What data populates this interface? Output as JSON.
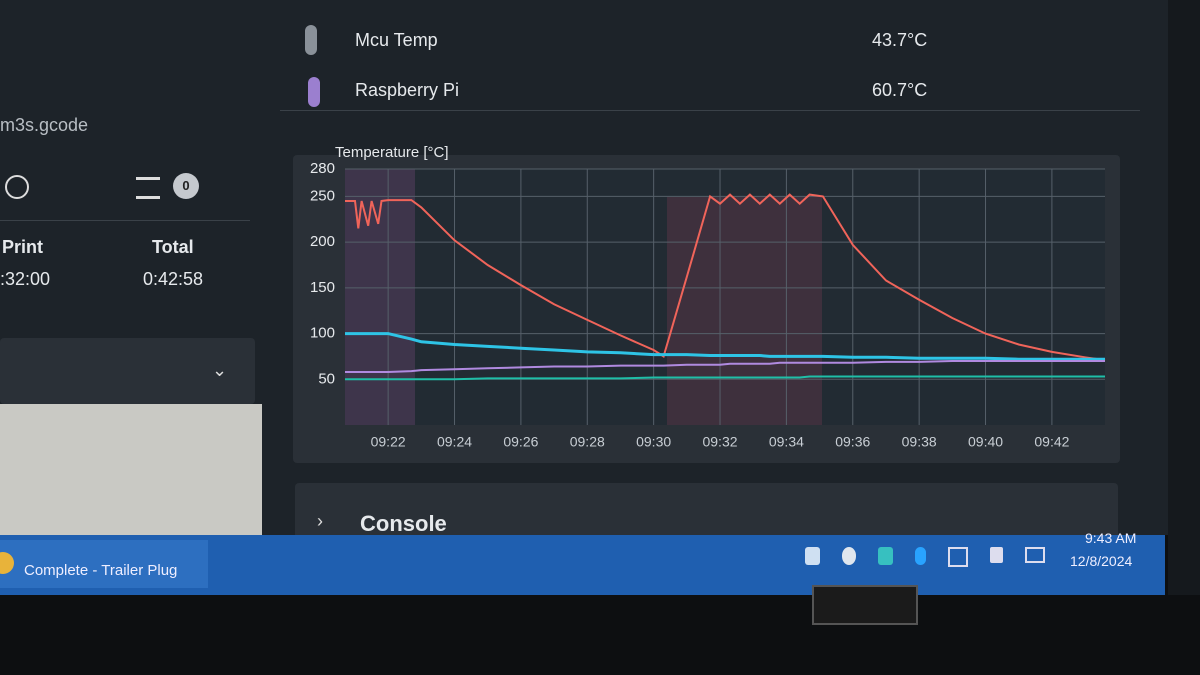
{
  "sensors": [
    {
      "name": "Mcu Temp",
      "value": "43.7°C"
    },
    {
      "name": "Raspberry Pi",
      "value": "60.7°C"
    }
  ],
  "file": "m3s.gcode",
  "queue_count": "0",
  "times": [
    {
      "label": "Print",
      "value": ":32:00"
    },
    {
      "label": "Total",
      "value": "0:42:58"
    }
  ],
  "chart_data": {
    "type": "line",
    "title": "Temperature [°C]",
    "x": [
      20.7,
      21.0,
      21.1,
      21.2,
      21.4,
      21.5,
      21.7,
      21.8,
      22.0,
      22.7,
      23,
      24,
      25,
      26,
      27,
      28,
      29,
      30,
      30.3,
      31,
      31.7,
      32,
      32.3,
      32.6,
      32.9,
      33.2,
      33.5,
      33.8,
      34.1,
      34.4,
      34.7,
      35.1,
      36,
      37,
      38,
      39,
      40,
      41,
      42,
      43,
      43.6
    ],
    "xlim": [
      20.7,
      43.6
    ],
    "xticks": [
      {
        "value": 22,
        "label": "09:22"
      },
      {
        "value": 24,
        "label": "09:24"
      },
      {
        "value": 26,
        "label": "09:26"
      },
      {
        "value": 28,
        "label": "09:28"
      },
      {
        "value": 30,
        "label": "09:30"
      },
      {
        "value": 32,
        "label": "09:32"
      },
      {
        "value": 34,
        "label": "09:34"
      },
      {
        "value": 36,
        "label": "09:36"
      },
      {
        "value": 38,
        "label": "09:38"
      },
      {
        "value": 40,
        "label": "09:40"
      },
      {
        "value": 42,
        "label": "09:42"
      }
    ],
    "ylim": [
      0,
      280
    ],
    "yticks": [
      50,
      100,
      150,
      200,
      250,
      280
    ],
    "grid": true,
    "series": [
      {
        "color": "#f0645a",
        "values": [
          245,
          245,
          215,
          245,
          218,
          245,
          220,
          245,
          246,
          246,
          238,
          202,
          175,
          153,
          132,
          115,
          98,
          82,
          75,
          162,
          250,
          242,
          252,
          242,
          252,
          242,
          252,
          242,
          252,
          242,
          252,
          250,
          197,
          158,
          137,
          117,
          100,
          88,
          80,
          74,
          71
        ]
      },
      {
        "color": "#2ec4e6",
        "values": [
          100,
          100,
          100,
          100,
          100,
          100,
          100,
          100,
          100,
          94,
          91,
          88,
          86,
          84,
          82,
          80,
          79,
          77,
          77,
          77,
          76,
          76,
          76,
          76,
          76,
          76,
          75,
          75,
          75,
          75,
          75,
          75,
          74,
          74,
          73,
          73,
          73,
          72,
          72,
          72,
          72
        ]
      },
      {
        "color": "#b08ae0",
        "values": [
          58,
          58,
          58,
          58,
          58,
          58,
          58,
          58,
          58,
          59,
          60,
          61,
          62,
          63,
          64,
          64,
          65,
          65,
          65,
          66,
          66,
          66,
          67,
          67,
          67,
          67,
          67,
          68,
          68,
          68,
          68,
          68,
          68,
          69,
          69,
          70,
          70,
          70,
          70,
          70,
          70
        ]
      },
      {
        "color": "#1fbfa8",
        "values": [
          50,
          50,
          50,
          50,
          50,
          50,
          50,
          50,
          50,
          50,
          50,
          50,
          51,
          51,
          51,
          51,
          51,
          52,
          52,
          52,
          52,
          52,
          52,
          52,
          52,
          52,
          52,
          52,
          52,
          52,
          53,
          53,
          53,
          53,
          53,
          53,
          53,
          53,
          53,
          53,
          53
        ]
      }
    ]
  },
  "console": {
    "title": "Console"
  },
  "taskbar": {
    "window": "Complete - Trailer Plug",
    "time": "9:43 AM",
    "date": "12/8/2024"
  }
}
